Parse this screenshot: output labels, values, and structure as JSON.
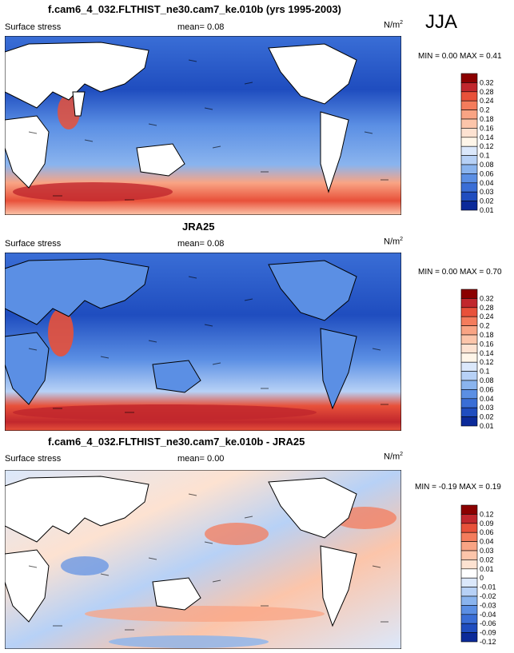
{
  "season": "JJA",
  "chart_data": [
    {
      "type": "heatmap",
      "title": "f.cam6_4_032.FLTHIST_ne30.cam7_ke.010b (yrs 1995-2003)",
      "left_label": "Surface stress",
      "mean_label": "mean=",
      "mean_value": "0.08",
      "units": "N/m",
      "units_exp": "2",
      "min_label": "MIN =",
      "min_value": "0.00",
      "max_label": "MAX =",
      "max_value": "0.41",
      "colorbar_levels": [
        "0.32",
        "0.28",
        "0.24",
        "0.2",
        "0.18",
        "0.16",
        "0.14",
        "0.12",
        "0.1",
        "0.08",
        "0.06",
        "0.04",
        "0.03",
        "0.02",
        "0.01"
      ],
      "colorbar_colors": [
        "#8b0000",
        "#c1272d",
        "#e8513a",
        "#f47c5c",
        "#f9a484",
        "#fcc5aa",
        "#fde2d1",
        "#fff6e9",
        "#dbe8fb",
        "#b7d1f6",
        "#8ab4ee",
        "#5b8fe4",
        "#3a6ed6",
        "#1f4dbf",
        "#0b2a99"
      ]
    },
    {
      "type": "heatmap",
      "title": "JRA25",
      "left_label": "Surface stress",
      "mean_label": "mean=",
      "mean_value": "0.08",
      "units": "N/m",
      "units_exp": "2",
      "min_label": "MIN =",
      "min_value": "0.00",
      "max_label": "MAX =",
      "max_value": "0.70",
      "colorbar_levels": [
        "0.32",
        "0.28",
        "0.24",
        "0.2",
        "0.18",
        "0.16",
        "0.14",
        "0.12",
        "0.1",
        "0.08",
        "0.06",
        "0.04",
        "0.03",
        "0.02",
        "0.01"
      ],
      "colorbar_colors": [
        "#8b0000",
        "#c1272d",
        "#e8513a",
        "#f47c5c",
        "#f9a484",
        "#fcc5aa",
        "#fde2d1",
        "#fff6e9",
        "#dbe8fb",
        "#b7d1f6",
        "#8ab4ee",
        "#5b8fe4",
        "#3a6ed6",
        "#1f4dbf",
        "#0b2a99"
      ]
    },
    {
      "type": "heatmap",
      "title": "f.cam6_4_032.FLTHIST_ne30.cam7_ke.010b - JRA25",
      "left_label": "Surface stress",
      "mean_label": "mean=",
      "mean_value": "0.00",
      "units": "N/m",
      "units_exp": "2",
      "min_label": "MIN =",
      "min_value": "-0.19",
      "max_label": "MAX =",
      "max_value": "0.19",
      "colorbar_levels": [
        "0.12",
        "0.09",
        "0.06",
        "0.04",
        "0.03",
        "0.02",
        "0.01",
        "0",
        "-0.01",
        "-0.02",
        "-0.03",
        "-0.04",
        "-0.06",
        "-0.09",
        "-0.12"
      ],
      "colorbar_colors": [
        "#8b0000",
        "#c1272d",
        "#e8513a",
        "#f47c5c",
        "#f9a484",
        "#fcc5aa",
        "#fde2d1",
        "#ffffff",
        "#dbe8fb",
        "#b7d1f6",
        "#8ab4ee",
        "#5b8fe4",
        "#3a6ed6",
        "#1f4dbf",
        "#0b2a99"
      ]
    }
  ]
}
